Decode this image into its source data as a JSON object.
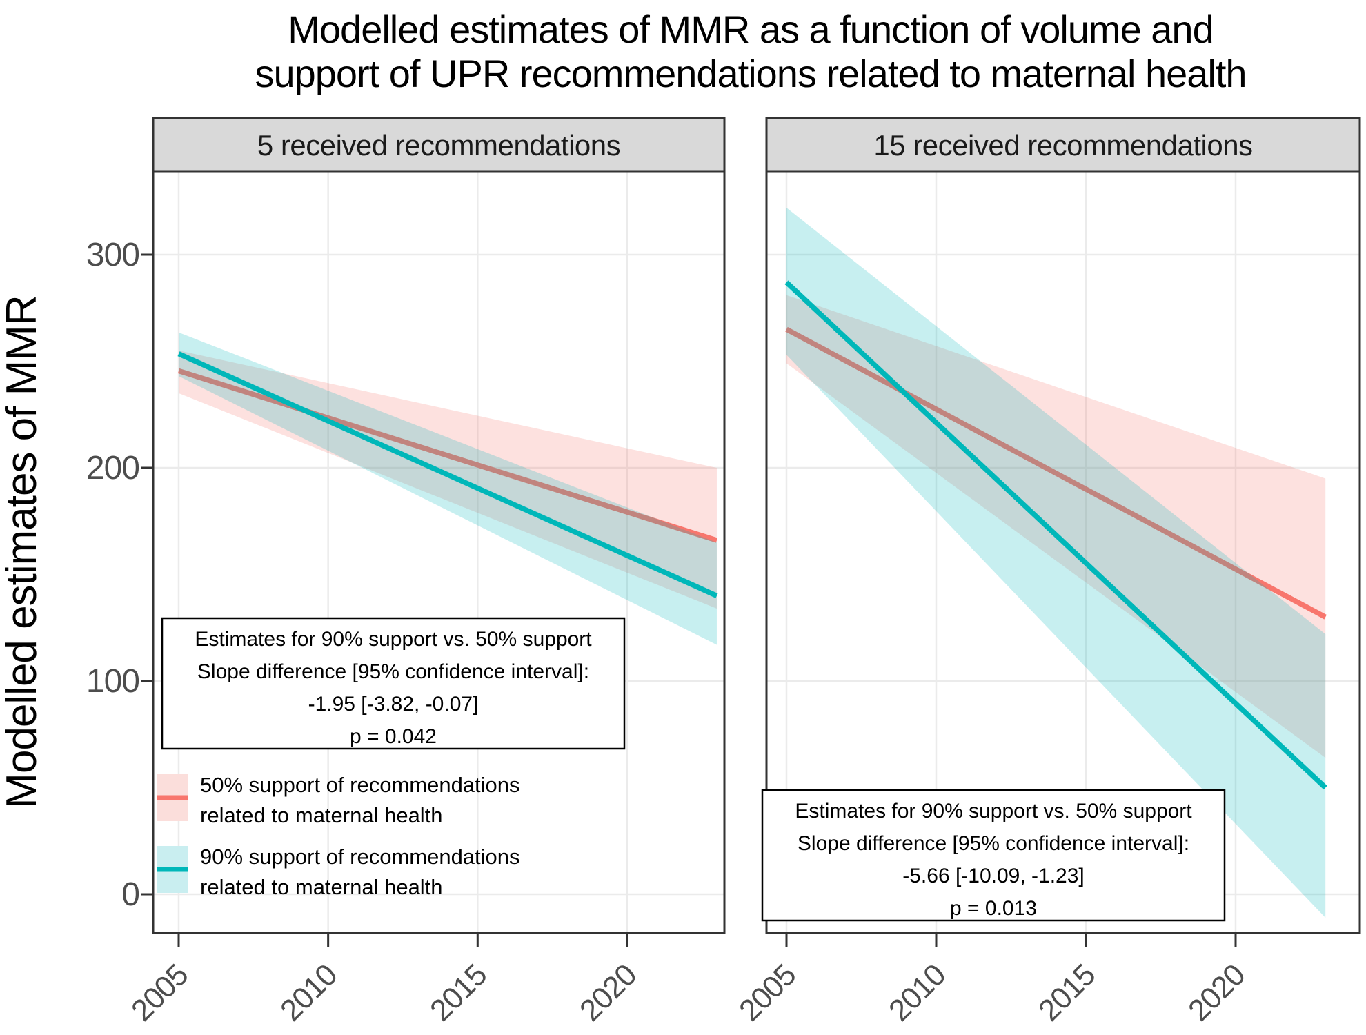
{
  "title": {
    "line1": "Modelled estimates of MMR as a function of volume and",
    "line2": "support of UPR recommendations related to maternal health"
  },
  "y_axis": {
    "label": "Modelled estimates of MMR",
    "ticks": [
      "300",
      "200",
      "100",
      "0"
    ],
    "tick_values": [
      300,
      200,
      100,
      0
    ]
  },
  "x_axis": {
    "ticks": [
      "2005",
      "2010",
      "2015",
      "2020"
    ],
    "tick_values": [
      2005,
      2010,
      2015,
      2020
    ]
  },
  "facets": [
    {
      "label": "5 received recommendations"
    },
    {
      "label": "15 received recommendations"
    }
  ],
  "legend": {
    "entries": [
      {
        "label_line1": "50% support of recommendations",
        "label_line2": "related to maternal health",
        "color": "#F8766D",
        "fill": "#FBDEDB"
      },
      {
        "label_line1": "90% support of recommendations",
        "label_line2": "related to maternal health",
        "color": "#00B7B9",
        "fill": "#C9EEF0"
      }
    ]
  },
  "annotations": {
    "left": {
      "line1": "Estimates for 90% support vs. 50% support",
      "line2": "Slope difference [95% confidence interval]:",
      "line3": "-1.95 [-3.82, -0.07]",
      "line4": "p = 0.042"
    },
    "right": {
      "line1": "Estimates for 90% support vs. 50% support",
      "line2": "Slope difference [95% confidence interval]:",
      "line3": "-5.66 [-10.09, -1.23]",
      "line4": "p = 0.013"
    }
  },
  "colors": {
    "red_line": "#F8766D",
    "teal_line": "#00B7B9",
    "grid": "#ebebeb",
    "axis": "#333333",
    "strip_fill": "#d9d9d9",
    "tick_label": "#4d4d4d",
    "ribbon_opacity": 0.22
  },
  "chart_data": {
    "type": "line",
    "x": [
      2005,
      2023
    ],
    "xlabel": "",
    "ylabel": "Modelled estimates of MMR",
    "ylim": [
      -20,
      340
    ],
    "grid": "major-only",
    "legend_position": "inside-left-panel",
    "panels": [
      {
        "facet": "5 received recommendations",
        "series": [
          {
            "name": "50% support of recommendations related to maternal health",
            "color": "#F8766D",
            "line": [
              245.5,
              166
            ],
            "ci_upper": [
              255,
              200
            ],
            "ci_lower": [
              235,
              134
            ]
          },
          {
            "name": "90% support of recommendations related to maternal health",
            "color": "#00B7B9",
            "line": [
              253.5,
              140
            ],
            "ci_upper": [
              263.5,
              165
            ],
            "ci_lower": [
              243,
              117
            ]
          }
        ],
        "slope_difference": "-1.95 [-3.82, -0.07]",
        "p_value": "0.042"
      },
      {
        "facet": "15 received recommendations",
        "series": [
          {
            "name": "50% support of recommendations related to maternal health",
            "color": "#F8766D",
            "line": [
              265,
              130
            ],
            "ci_upper": [
              281,
              195
            ],
            "ci_lower": [
              249,
              64
            ]
          },
          {
            "name": "90% support of recommendations related to maternal health",
            "color": "#00B7B9",
            "line": [
              287,
              50
            ],
            "ci_upper": [
              322,
              122
            ],
            "ci_lower": [
              253,
              -11
            ]
          }
        ],
        "slope_difference": "-5.66 [-10.09, -1.23]",
        "p_value": "0.013"
      }
    ]
  }
}
